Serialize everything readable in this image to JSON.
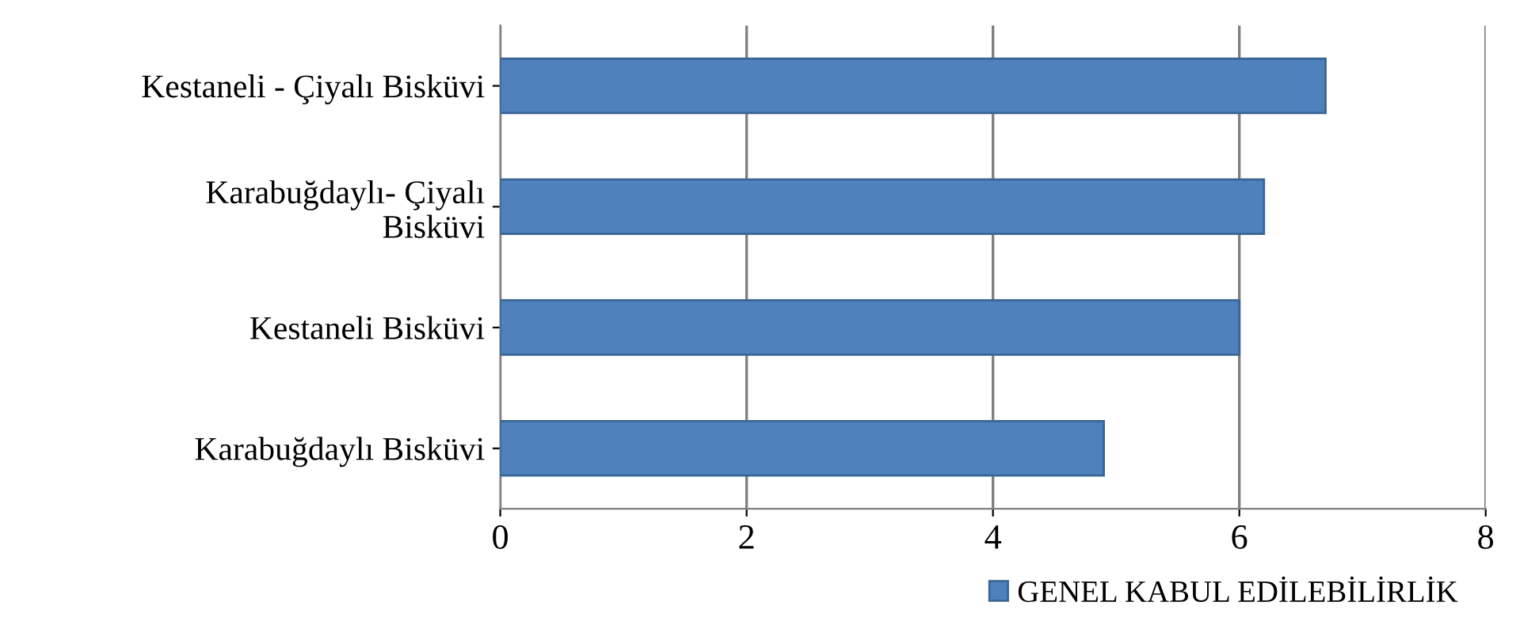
{
  "chart_data": {
    "type": "bar",
    "orientation": "horizontal",
    "categories": [
      "Kestaneli - Çiyalı Bisküvi",
      "Karabuğdaylı- Çiyalı\nBisküvi",
      "Kestaneli Bisküvi",
      "Karabuğdaylı Bisküvi"
    ],
    "series": [
      {
        "name": "GENEL KABUL EDİLEBİLİRLİK",
        "color": "#4f81bd",
        "values": [
          6.7,
          6.2,
          6.0,
          4.9
        ]
      }
    ],
    "xlim": [
      0,
      8
    ],
    "xticks": [
      0,
      2,
      4,
      6,
      8
    ],
    "grid": "x",
    "legend": "bottom right"
  }
}
